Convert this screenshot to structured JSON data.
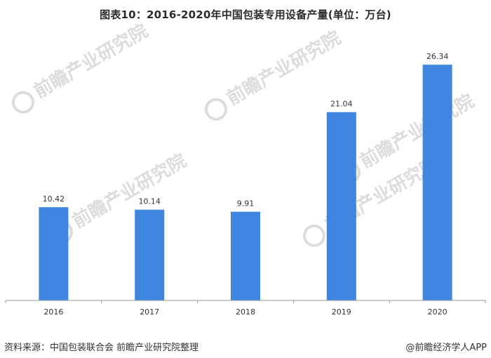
{
  "title": "图表10：2016-2020年中国包装专用设备产量(单位：万台)",
  "source": "资料来源：中国包装联合会 前瞻产业研究院整理",
  "credit": "@前瞻经济学人APP",
  "watermark": {
    "text": "前瞻产业研究院"
  },
  "colors": {
    "bar": "#3f86e0",
    "axis": "#9a9a9a",
    "label": "#333333",
    "watermark": "#dcdcdc"
  },
  "chart_data": {
    "type": "bar",
    "categories": [
      "2016",
      "2017",
      "2018",
      "2019",
      "2020"
    ],
    "values": [
      10.42,
      10.14,
      9.91,
      21.04,
      26.34
    ],
    "value_labels": [
      "10.42",
      "10.14",
      "9.91",
      "21.04",
      "26.34"
    ],
    "title": "图表10：2016-2020年中国包装专用设备产量(单位：万台)",
    "xlabel": "",
    "ylabel": "",
    "ylim": [
      0,
      30
    ],
    "grid": false,
    "legend": "none"
  }
}
